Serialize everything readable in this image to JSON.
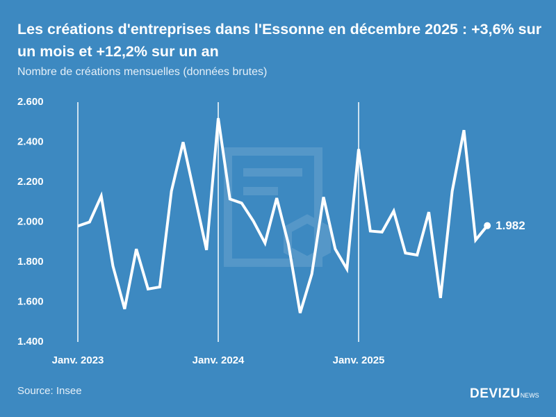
{
  "chart_data": {
    "type": "line",
    "title": "Les créations d'entreprises dans l'Essonne en décembre 2025 : +3,6% sur un mois et +12,2% sur un an",
    "subtitle": "Nombre de créations mensuelles (données brutes)",
    "source": "Source: Insee",
    "brand": "DEVIZU",
    "brand_suffix": "NEWS",
    "categories": [
      "Janv. 2023",
      null,
      null,
      null,
      null,
      null,
      null,
      null,
      null,
      null,
      null,
      null,
      "Janv. 2024",
      null,
      null,
      null,
      null,
      null,
      null,
      null,
      null,
      null,
      null,
      null,
      "Janv. 2025",
      null,
      null,
      null,
      null,
      null,
      null,
      null,
      null,
      null,
      null,
      null
    ],
    "series": [
      {
        "color": "#ffffff",
        "values": [
          1980,
          2000,
          2130,
          1780,
          1565,
          1865,
          1665,
          1675,
          2155,
          2400,
          2130,
          1860,
          2520,
          2115,
          2095,
          2005,
          1895,
          2120,
          1890,
          1545,
          1740,
          2125,
          1865,
          1765,
          2365,
          1955,
          1950,
          2055,
          1845,
          1835,
          2050,
          1620,
          2155,
          2460,
          1910,
          1982
        ],
        "value_labels": [
          null,
          null,
          null,
          null,
          null,
          null,
          null,
          null,
          null,
          null,
          null,
          null,
          null,
          null,
          null,
          null,
          null,
          null,
          null,
          null,
          null,
          null,
          null,
          null,
          null,
          null,
          null,
          null,
          null,
          null,
          null,
          null,
          null,
          null,
          null,
          "1.982"
        ]
      }
    ],
    "ylim": [
      1400,
      2600
    ],
    "yticks": [
      {
        "value": 1400,
        "label": "1.400"
      },
      {
        "value": 1600,
        "label": "1.600"
      },
      {
        "value": 1800,
        "label": "1.800"
      },
      {
        "value": 2000,
        "label": "2.000"
      },
      {
        "value": 2200,
        "label": "2.200"
      },
      {
        "value": 2400,
        "label": "2.400"
      },
      {
        "value": 2600,
        "label": "2.600"
      }
    ]
  }
}
